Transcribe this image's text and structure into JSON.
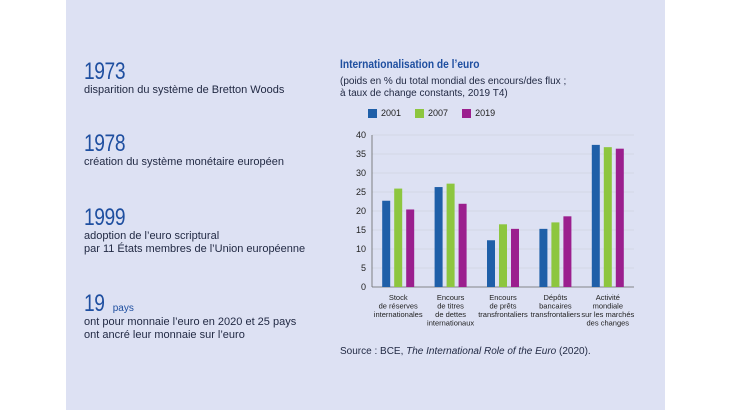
{
  "facts": [
    {
      "big": "1973",
      "unit": "",
      "desc": "disparition du système de Bretton Woods"
    },
    {
      "big": "1978",
      "unit": "",
      "desc": "création du système monétaire européen"
    },
    {
      "big": "1999",
      "unit": "",
      "desc": "adoption de l’euro scriptural\npar 11 États membres de l’Union européenne"
    },
    {
      "big": "19",
      "unit": "pays",
      "desc": "ont pour monnaie l’euro en 2020 et 25 pays\nont ancré leur monnaie sur l’euro"
    }
  ],
  "chart_data": {
    "type": "bar",
    "title": "Internationalisation de l’euro",
    "subtitle": "(poids en % du total mondial des encours/des flux ;\nà taux de change constants, 2019 T4)",
    "categories": [
      "Stock\nde réserves\ninternationales",
      "Encours\nde titres\nde dettes\ninternationaux",
      "Encours\nde prêts\ntransfrontaliers",
      "Dépôts\nbancaires\ntransfrontaliers",
      "Activité\nmondiale\nsur les marchés\ndes changes"
    ],
    "series": [
      {
        "name": "2001",
        "color": "#1f5fa8",
        "values": [
          22.7,
          26.3,
          12.3,
          15.3,
          37.4
        ]
      },
      {
        "name": "2007",
        "color": "#8dc63f",
        "values": [
          25.9,
          27.2,
          16.5,
          17.0,
          36.8
        ]
      },
      {
        "name": "2019",
        "color": "#9b1f8e",
        "values": [
          20.4,
          21.9,
          15.3,
          18.6,
          36.4
        ]
      }
    ],
    "ylim": [
      0,
      40
    ],
    "yticks": [
      0,
      5,
      10,
      15,
      20,
      25,
      30,
      35,
      40
    ],
    "grid": true
  },
  "source": {
    "prefix": "Source : BCE, ",
    "italic": "The International Role of the Euro",
    "suffix": " (2020)."
  }
}
